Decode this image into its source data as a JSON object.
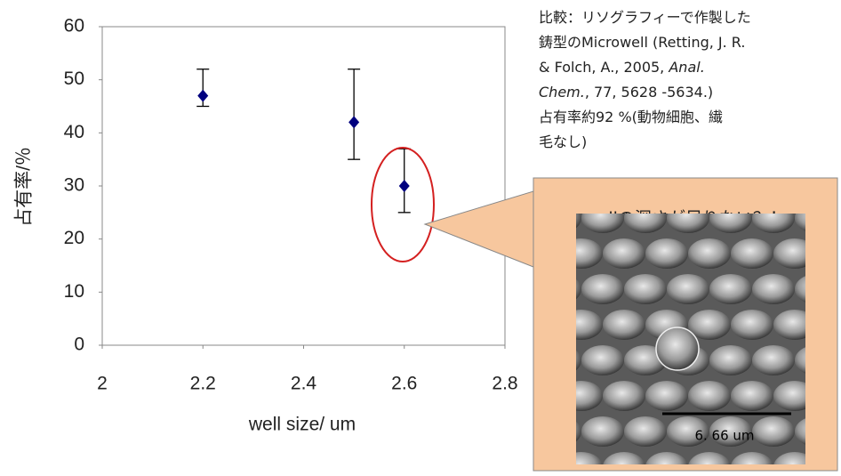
{
  "chart_data": {
    "type": "scatter",
    "x_label": "well size/ um",
    "y_label": "占有率/％",
    "x": [
      2.2,
      2.5,
      2.6
    ],
    "series": [
      {
        "color": "#00007f",
        "values": [
          47,
          42,
          30
        ],
        "err_minus": [
          2,
          7,
          5
        ],
        "err_plus": [
          5,
          10,
          7
        ]
      }
    ],
    "xlim": [
      2,
      2.8
    ],
    "ylim": [
      0,
      60
    ],
    "xticks": [
      2,
      2.2,
      2.4,
      2.6,
      2.8
    ],
    "yticks": [
      0,
      10,
      20,
      30,
      40,
      50,
      60
    ]
  },
  "annotation": {
    "lines": [
      [
        {
          "text": "比較：リソグラフィーで作製した"
        }
      ],
      [
        {
          "text": "鋳型のMicrowell (Retting, J. R."
        }
      ],
      [
        {
          "text": "& Folch, A., 2005, "
        },
        {
          "text": "Anal.",
          "italic": true
        }
      ],
      [
        {
          "text": "Chem.",
          "italic": true
        },
        {
          "text": ", 77, 5628 -5634.)"
        }
      ],
      [
        {
          "text": "占有率約92 %(動物細胞、繊"
        }
      ],
      [
        {
          "text": "毛なし)"
        }
      ]
    ]
  },
  "callout": {
    "title": "wellの深さが足りない？！",
    "scale_label": "6. 66 um"
  }
}
